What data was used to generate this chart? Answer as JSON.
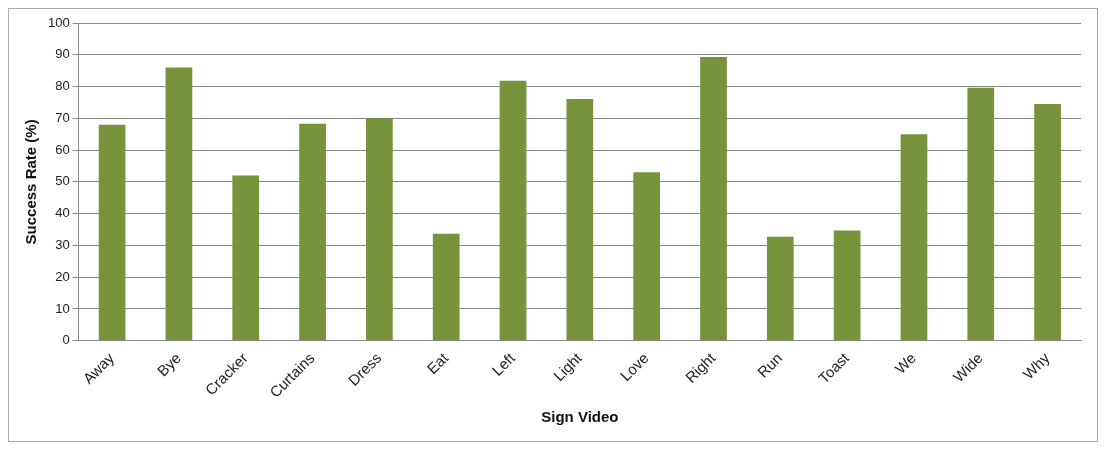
{
  "chart_data": {
    "type": "bar",
    "xlabel": "Sign Video",
    "ylabel": "Success Rate (%)",
    "categories": [
      "Away",
      "Bye",
      "Cracker",
      "Curtains",
      "Dress",
      "Eat",
      "Left",
      "Light",
      "Love",
      "Right",
      "Run",
      "Toast",
      "We",
      "Wide",
      "Why"
    ],
    "values": [
      68,
      86,
      52,
      68.3,
      70,
      33.7,
      81.8,
      76.1,
      53,
      89.3,
      32.7,
      34.7,
      65,
      79.6,
      74.5
    ],
    "color": "#77933c",
    "ylim": [
      0,
      100
    ],
    "yticks": [
      0,
      10,
      20,
      30,
      40,
      50,
      60,
      70,
      80,
      90,
      100
    ],
    "grid": "y",
    "legend": false
  }
}
